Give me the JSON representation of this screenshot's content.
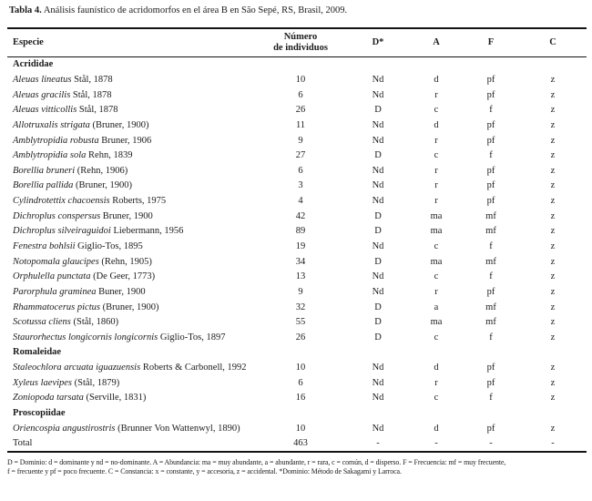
{
  "title": {
    "label": "Tabla 4.",
    "text": " Análisis faunístico de acridomorfos en el área B en São Sepé, RS, Brasil, 2009."
  },
  "table": {
    "headers": {
      "especie": "Especie",
      "numero_line1": "Número",
      "numero_line2": "de individuos",
      "d": "D*",
      "a": "A",
      "f": "F",
      "c": "C"
    },
    "rows": [
      {
        "type": "section",
        "name": "Acrididae"
      },
      {
        "type": "species",
        "name": "Aleuas lineatus",
        "authority": "Stål, 1878",
        "n": "10",
        "d": "Nd",
        "a": "d",
        "f": "pf",
        "c": "z"
      },
      {
        "type": "species",
        "name": "Aleuas gracilis",
        "authority": "Stål, 1878",
        "n": "6",
        "d": "Nd",
        "a": "r",
        "f": "pf",
        "c": "z"
      },
      {
        "type": "species",
        "name": "Aleuas vitticollis",
        "authority": "Stål, 1878",
        "n": "26",
        "d": "D",
        "a": "c",
        "f": "f",
        "c": "z"
      },
      {
        "type": "species",
        "name": "Allotruxalis strigata",
        "authority": "(Bruner, 1900)",
        "n": "11",
        "d": "Nd",
        "a": "d",
        "f": "pf",
        "c": "z"
      },
      {
        "type": "species",
        "name": "Amblytropidia robusta",
        "authority": "Bruner, 1906",
        "n": "9",
        "d": "Nd",
        "a": "r",
        "f": "pf",
        "c": "z"
      },
      {
        "type": "species",
        "name": "Amblytropidia sola",
        "authority": "Rehn, 1839",
        "n": "27",
        "d": "D",
        "a": "c",
        "f": "f",
        "c": "z"
      },
      {
        "type": "species",
        "name": "Borellia bruneri",
        "authority": "(Rehn, 1906)",
        "n": "6",
        "d": "Nd",
        "a": "r",
        "f": "pf",
        "c": "z"
      },
      {
        "type": "species",
        "name": "Borellia pallida",
        "authority": "(Bruner, 1900)",
        "n": "3",
        "d": "Nd",
        "a": "r",
        "f": "pf",
        "c": "z"
      },
      {
        "type": "species",
        "name": "Cylindrotettix chacoensis",
        "authority": "Roberts, 1975",
        "n": "4",
        "d": "Nd",
        "a": "r",
        "f": "pf",
        "c": "z"
      },
      {
        "type": "species",
        "name": "Dichroplus conspersus",
        "authority": "Bruner, 1900",
        "n": "42",
        "d": "D",
        "a": "ma",
        "f": "mf",
        "c": "z"
      },
      {
        "type": "species",
        "name": "Dichroplus silveiraguidoi",
        "authority": "Liebermann, 1956",
        "n": "89",
        "d": "D",
        "a": "ma",
        "f": "mf",
        "c": "z"
      },
      {
        "type": "species",
        "name": "Fenestra bohlsii",
        "authority": "Giglio-Tos, 1895",
        "n": "19",
        "d": "Nd",
        "a": "c",
        "f": "f",
        "c": "z"
      },
      {
        "type": "species",
        "name": "Notopomala glaucipes",
        "authority": "(Rehn, 1905)",
        "n": "34",
        "d": "D",
        "a": "ma",
        "f": "mf",
        "c": "z"
      },
      {
        "type": "species",
        "name": "Orphulella punctata",
        "authority": "(De Geer, 1773)",
        "n": "13",
        "d": "Nd",
        "a": "c",
        "f": "f",
        "c": "z"
      },
      {
        "type": "species",
        "name": "Parorphula graminea",
        "authority": "Buner, 1900",
        "n": "9",
        "d": "Nd",
        "a": "r",
        "f": "pf",
        "c": "z"
      },
      {
        "type": "species",
        "name": "Rhammatocerus pictus",
        "authority": "(Bruner, 1900)",
        "n": "32",
        "d": "D",
        "a": "a",
        "f": "mf",
        "c": "z"
      },
      {
        "type": "species",
        "name": "Scotussa cliens",
        "authority": "(Stål, 1860)",
        "n": "55",
        "d": "D",
        "a": "ma",
        "f": "mf",
        "c": "z"
      },
      {
        "type": "species",
        "name": "Staurorhectus longicornis longicornis",
        "authority": "Giglio-Tos, 1897",
        "n": "26",
        "d": "D",
        "a": "c",
        "f": "f",
        "c": "z"
      },
      {
        "type": "section",
        "name": "Romaleidae"
      },
      {
        "type": "species",
        "name": "Staleochlora arcuata iguazuensis",
        "authority": "Roberts & Carbonell, 1992",
        "n": "10",
        "d": "Nd",
        "a": "d",
        "f": "pf",
        "c": "z"
      },
      {
        "type": "species",
        "name": "Xyleus laevipes",
        "authority": "(Stål, 1879)",
        "n": "6",
        "d": "Nd",
        "a": "r",
        "f": "pf",
        "c": "z"
      },
      {
        "type": "species",
        "name": "Zoniopoda tarsata",
        "authority": "(Serville, 1831)",
        "n": "16",
        "d": "Nd",
        "a": "c",
        "f": "f",
        "c": "z"
      },
      {
        "type": "section",
        "name": "Proscopiidae"
      },
      {
        "type": "species",
        "name": "Oriencospia angustirostris",
        "authority": "(Brunner Von Wattenwyl, 1890)",
        "n": "10",
        "d": "Nd",
        "a": "d",
        "f": "pf",
        "c": "z"
      },
      {
        "type": "total",
        "name": "Total",
        "n": "463",
        "d": "-",
        "a": "-",
        "f": "-",
        "c": "-"
      }
    ]
  },
  "footnote": {
    "line1": "D = Dominio: d = dominante y nd = no-dominante. A = Abundancia: ma = muy abundante, a = abundante, r = rara, c = común, d = disperso. F = Frecuencia: mf = muy frecuente,",
    "line2": "f = frecuente y pf = poco frecuente. C = Constancia: x = constante, y = accesoria, z = accidental. *Dominio: Método de Sakagami y Larroca."
  }
}
